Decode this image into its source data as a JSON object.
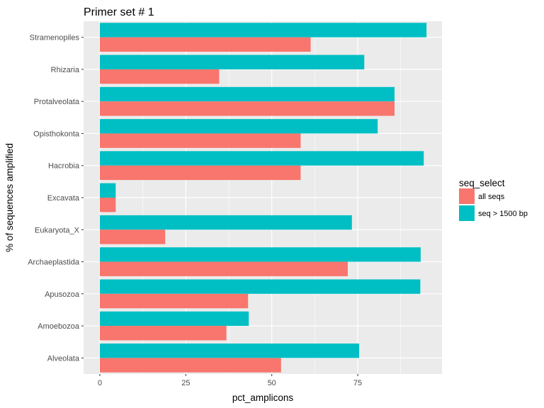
{
  "chart_data": {
    "type": "bar",
    "orientation": "horizontal",
    "title": "Primer set # 1",
    "xlabel": "pct_amplicons",
    "ylabel": "% of sequences amplified",
    "xlim": [
      0,
      100
    ],
    "xticks": [
      0,
      25,
      50,
      75
    ],
    "categories": [
      "Stramenopiles",
      "Rhizaria",
      "Protalveolata",
      "Opisthokonta",
      "Hacrobia",
      "Excavata",
      "Eukaryota_X",
      "Archaeplastida",
      "Apusozoa",
      "Amoebozoa",
      "Alveolata"
    ],
    "series": [
      {
        "name": "all seqs",
        "color": "#F8766D",
        "values": [
          61.3,
          34.7,
          85.7,
          58.4,
          58.4,
          4.6,
          19.0,
          72.1,
          43.1,
          36.8,
          52.7
        ]
      },
      {
        "name": "seq > 1500 bp",
        "color": "#00BFC4",
        "values": [
          95.0,
          76.9,
          85.7,
          80.8,
          94.2,
          4.6,
          73.3,
          93.3,
          93.2,
          43.3,
          75.4
        ]
      }
    ],
    "legend": {
      "title": "seq_select",
      "position": "right"
    },
    "grid": true,
    "panel_background": "#EBEBEB",
    "grid_color": "#FFFFFF"
  }
}
